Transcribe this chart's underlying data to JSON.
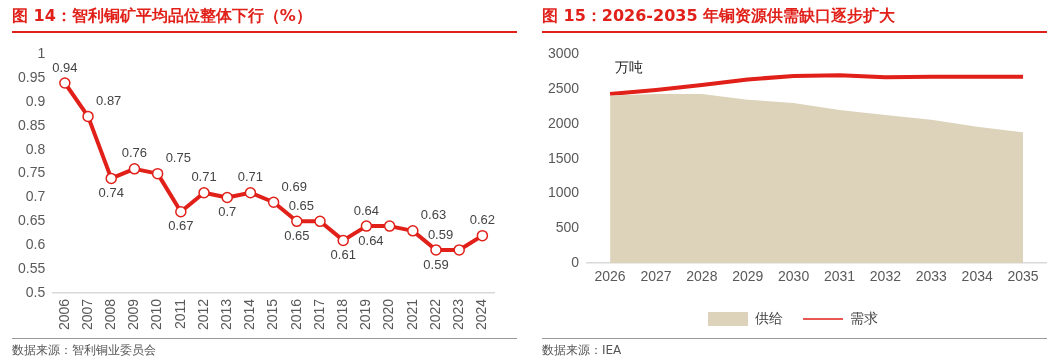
{
  "chart_data": [
    {
      "type": "line",
      "title": "图 14：智利铜矿平均品位整体下行（%）",
      "categories": [
        "2006",
        "2007",
        "2008",
        "2009",
        "2010",
        "2011",
        "2012",
        "2013",
        "2014",
        "2015",
        "2016",
        "2017",
        "2018",
        "2019",
        "2020",
        "2021",
        "2022",
        "2023",
        "2024"
      ],
      "series": [
        {
          "color": "#e02019",
          "values": [
            0.94,
            0.87,
            0.74,
            0.76,
            0.75,
            0.67,
            0.71,
            0.7,
            0.71,
            0.69,
            0.65,
            0.65,
            0.61,
            0.64,
            0.64,
            0.63,
            0.59,
            0.59,
            0.62
          ]
        }
      ],
      "ylim": [
        0.5,
        1
      ],
      "yticks": [
        0.5,
        0.55,
        0.6,
        0.65,
        0.7,
        0.75,
        0.8,
        0.85,
        0.9,
        0.95,
        1
      ],
      "marker": "circle",
      "data_labels": true,
      "grid": false,
      "annotations": [
        "数据来源：智利铜业委员会"
      ]
    },
    {
      "type": "area",
      "title": "图 15：2026-2035 年铜资源供需缺口逐步扩大",
      "ylabel": "万吨",
      "categories": [
        "2026",
        "2027",
        "2028",
        "2029",
        "2030",
        "2031",
        "2032",
        "2033",
        "2034",
        "2035"
      ],
      "series": [
        {
          "name": "供给",
          "type": "area",
          "color": "#ddd3bb",
          "values": [
            2410,
            2430,
            2430,
            2350,
            2300,
            2200,
            2130,
            2060,
            1960,
            1880
          ]
        },
        {
          "name": "需求",
          "type": "line",
          "color": "#e02019",
          "values": [
            2430,
            2490,
            2560,
            2640,
            2690,
            2700,
            2670,
            2680,
            2680,
            2680
          ]
        }
      ],
      "ylim": [
        0,
        3000
      ],
      "yticks": [
        0,
        500,
        1000,
        1500,
        2000,
        2500,
        3000
      ],
      "legend": "bottom",
      "grid": false,
      "annotations": [
        "数据来源：IEA"
      ]
    }
  ]
}
